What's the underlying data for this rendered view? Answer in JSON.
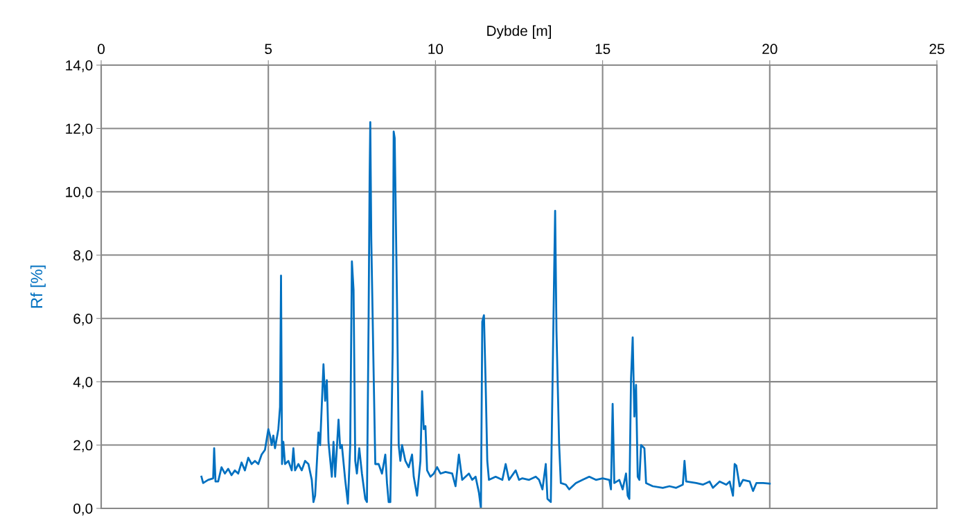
{
  "chart_data": {
    "type": "line",
    "xlabel": "Dybde [m]",
    "ylabel": "Rf [%]",
    "xlim": [
      0,
      25
    ],
    "xticks": [
      0,
      5,
      10,
      15,
      20,
      25
    ],
    "ylim": [
      0,
      14
    ],
    "yticks": [
      {
        "value": 0,
        "label": "0,0"
      },
      {
        "value": 2,
        "label": "2,0"
      },
      {
        "value": 4,
        "label": "4,0"
      },
      {
        "value": 6,
        "label": "6,0"
      },
      {
        "value": 8,
        "label": "8,0"
      },
      {
        "value": 10,
        "label": "10,0"
      },
      {
        "value": 12,
        "label": "12,0"
      },
      {
        "value": 14,
        "label": "14,0"
      }
    ],
    "grid": true,
    "marker": "none",
    "line_style": "solid",
    "series": [
      {
        "color": "#0070c0",
        "x": [
          3.0,
          3.05,
          3.2,
          3.35,
          3.38,
          3.42,
          3.5,
          3.6,
          3.7,
          3.8,
          3.9,
          4.0,
          4.1,
          4.2,
          4.3,
          4.4,
          4.5,
          4.6,
          4.7,
          4.8,
          4.9,
          5.0,
          5.05,
          5.1,
          5.15,
          5.2,
          5.3,
          5.35,
          5.38,
          5.41,
          5.45,
          5.5,
          5.6,
          5.7,
          5.75,
          5.8,
          5.9,
          6.0,
          6.1,
          6.2,
          6.3,
          6.35,
          6.4,
          6.5,
          6.55,
          6.65,
          6.7,
          6.75,
          6.8,
          6.9,
          6.95,
          7.0,
          7.1,
          7.15,
          7.2,
          7.3,
          7.38,
          7.45,
          7.5,
          7.55,
          7.6,
          7.65,
          7.72,
          7.8,
          7.9,
          7.95,
          8.0,
          8.03,
          8.05,
          8.08,
          8.15,
          8.2,
          8.3,
          8.4,
          8.5,
          8.55,
          8.6,
          8.65,
          8.72,
          8.75,
          8.78,
          8.85,
          8.9,
          8.95,
          9.0,
          9.1,
          9.2,
          9.3,
          9.35,
          9.45,
          9.55,
          9.6,
          9.65,
          9.7,
          9.75,
          9.85,
          9.95,
          10.05,
          10.15,
          10.3,
          10.5,
          10.6,
          10.7,
          10.8,
          10.9,
          11.0,
          11.1,
          11.2,
          11.3,
          11.36,
          11.4,
          11.45,
          11.5,
          11.55,
          11.6,
          11.8,
          12.0,
          12.1,
          12.2,
          12.4,
          12.5,
          12.6,
          12.8,
          13.0,
          13.1,
          13.2,
          13.3,
          13.35,
          13.45,
          13.55,
          13.58,
          13.62,
          13.7,
          13.75,
          13.9,
          14.0,
          14.2,
          14.4,
          14.6,
          14.8,
          15.0,
          15.2,
          15.25,
          15.3,
          15.35,
          15.5,
          15.6,
          15.7,
          15.75,
          15.8,
          15.85,
          15.9,
          15.95,
          16.0,
          16.05,
          16.1,
          16.15,
          16.25,
          16.3,
          16.5,
          16.8,
          17.0,
          17.2,
          17.4,
          17.45,
          17.5,
          17.8,
          18.0,
          18.2,
          18.3,
          18.5,
          18.7,
          18.8,
          18.9,
          18.95,
          19.0,
          19.1,
          19.2,
          19.4,
          19.5,
          19.6,
          19.8,
          20.0
        ],
        "values": [
          1.0,
          0.8,
          0.9,
          0.95,
          1.9,
          0.85,
          0.85,
          1.3,
          1.1,
          1.25,
          1.05,
          1.2,
          1.1,
          1.45,
          1.2,
          1.6,
          1.4,
          1.5,
          1.4,
          1.7,
          1.85,
          2.5,
          2.3,
          2.0,
          2.3,
          1.9,
          2.5,
          3.2,
          7.35,
          1.4,
          2.1,
          1.4,
          1.5,
          1.2,
          1.9,
          1.2,
          1.4,
          1.2,
          1.5,
          1.4,
          0.9,
          0.2,
          0.4,
          2.4,
          2.0,
          4.55,
          3.4,
          4.05,
          2.1,
          1.0,
          2.1,
          1.0,
          2.8,
          1.9,
          2.0,
          0.9,
          0.15,
          2.0,
          7.8,
          6.9,
          1.5,
          1.1,
          1.9,
          1.1,
          0.3,
          0.2,
          6.0,
          10.4,
          12.2,
          8.5,
          4.3,
          1.4,
          1.4,
          1.1,
          1.7,
          0.8,
          0.2,
          0.2,
          5.0,
          11.9,
          11.7,
          6.5,
          2.0,
          1.5,
          2.0,
          1.5,
          1.3,
          1.7,
          1.0,
          0.4,
          1.5,
          3.7,
          2.5,
          2.6,
          1.2,
          1.0,
          1.1,
          1.3,
          1.1,
          1.15,
          1.1,
          0.7,
          1.7,
          0.9,
          1.0,
          1.1,
          0.9,
          1.0,
          0.5,
          0.0,
          5.9,
          6.1,
          4.0,
          1.5,
          0.9,
          1.0,
          0.9,
          1.4,
          0.9,
          1.2,
          0.9,
          0.95,
          0.9,
          1.0,
          0.9,
          0.6,
          1.4,
          0.3,
          0.2,
          7.4,
          9.4,
          5.6,
          2.0,
          0.8,
          0.75,
          0.6,
          0.8,
          0.9,
          1.0,
          0.9,
          0.95,
          0.9,
          0.6,
          3.3,
          0.8,
          0.9,
          0.6,
          1.1,
          0.4,
          0.3,
          4.1,
          5.4,
          2.9,
          3.9,
          1.0,
          0.9,
          2.0,
          1.9,
          0.8,
          0.7,
          0.65,
          0.7,
          0.65,
          0.75,
          1.5,
          0.85,
          0.8,
          0.75,
          0.85,
          0.65,
          0.85,
          0.75,
          0.85,
          0.4,
          1.4,
          1.35,
          0.7,
          0.9,
          0.85,
          0.55,
          0.8,
          0.8,
          0.78
        ]
      }
    ]
  }
}
